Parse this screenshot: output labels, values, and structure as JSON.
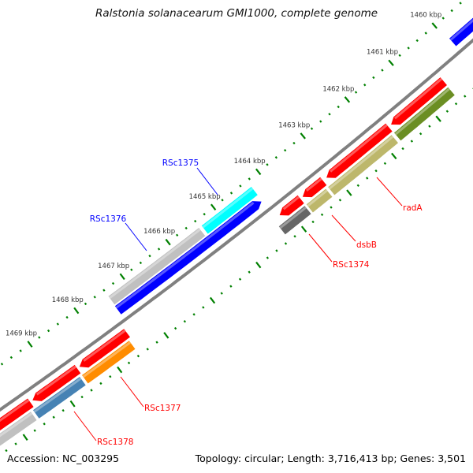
{
  "title": "Ralstonia solanacearum GMI1000, complete genome",
  "footer": {
    "accession": "Accession: NC_003295",
    "summary": "Topology: circular; Length: 3,716,413 bp; Genes: 3,501"
  },
  "ruler": {
    "unit": "kbp",
    "labels": [
      "1460 kbp",
      "1461 kbp",
      "1462 kbp",
      "1463 kbp",
      "1464 kbp",
      "1465 kbp",
      "1466 kbp",
      "1467 kbp",
      "1468 kbp",
      "1469 kbp"
    ],
    "major_kbp": [
      1460,
      1461,
      1462,
      1463,
      1464,
      1465,
      1466,
      1467,
      1468,
      1469
    ],
    "minor_step_kbp": 0.2,
    "color": "#008000"
  },
  "backbone_color": "#808080",
  "features": [
    {
      "ring": "rev2",
      "start": 1464.26,
      "end": 1465.36,
      "color": "#00ffff",
      "arrow": false
    },
    {
      "ring": "rev2",
      "start": 1465.42,
      "end": 1467.4,
      "color": "#c0c0c0",
      "arrow": false
    },
    {
      "ring": "rev1",
      "start": 1458.8,
      "end": 1459.95,
      "color": "#0000ff",
      "arrow": false
    },
    {
      "ring": "rev1",
      "start": 1464.28,
      "end": 1467.41,
      "color": "#0000ff",
      "arrow": true
    },
    {
      "ring": "fwd1",
      "start": 1460.51,
      "end": 1461.69,
      "color": "#ff0000",
      "arrow": true
    },
    {
      "ring": "fwd1",
      "start": 1461.75,
      "end": 1463.14,
      "color": "#ff0000",
      "arrow": true
    },
    {
      "ring": "fwd1",
      "start": 1463.22,
      "end": 1463.67,
      "color": "#ff0000",
      "arrow": true
    },
    {
      "ring": "fwd1",
      "start": 1463.72,
      "end": 1464.18,
      "color": "#ff0000",
      "arrow": true
    },
    {
      "ring": "fwd1",
      "start": 1467.52,
      "end": 1468.53,
      "color": "#ff0000",
      "arrow": true
    },
    {
      "ring": "fwd1",
      "start": 1468.58,
      "end": 1469.53,
      "color": "#ff0000",
      "arrow": true
    },
    {
      "ring": "fwd1",
      "start": 1469.58,
      "end": 1470.6,
      "color": "#ff0000",
      "arrow": true
    },
    {
      "ring": "fwd2",
      "start": 1460.52,
      "end": 1461.74,
      "color": "#6b8e23",
      "arrow": false
    },
    {
      "ring": "fwd2",
      "start": 1461.8,
      "end": 1463.22,
      "color": "#bdb76b",
      "arrow": false
    },
    {
      "ring": "fwd2",
      "start": 1463.27,
      "end": 1463.7,
      "color": "#bdb76b",
      "arrow": false
    },
    {
      "ring": "fwd2",
      "start": 1463.74,
      "end": 1464.31,
      "color": "#666666",
      "arrow": false
    },
    {
      "ring": "fwd2",
      "start": 1467.57,
      "end": 1468.58,
      "color": "#ff8c00",
      "arrow": false
    },
    {
      "ring": "fwd2",
      "start": 1468.63,
      "end": 1469.62,
      "color": "#4682b4",
      "arrow": false
    },
    {
      "ring": "fwd2",
      "start": 1469.67,
      "end": 1470.6,
      "color": "#c0c0c0",
      "arrow": false
    }
  ],
  "gene_labels": [
    {
      "text": "radA",
      "color": "#ff0000"
    },
    {
      "text": "dsbB",
      "color": "#ff0000"
    },
    {
      "text": "RSc1374",
      "color": "#ff0000"
    },
    {
      "text": "RSc1375",
      "color": "#0000ff"
    },
    {
      "text": "RSc1376",
      "color": "#0000ff"
    },
    {
      "text": "RSc1377",
      "color": "#ff0000"
    },
    {
      "text": "RSc1378",
      "color": "#ff0000"
    }
  ]
}
